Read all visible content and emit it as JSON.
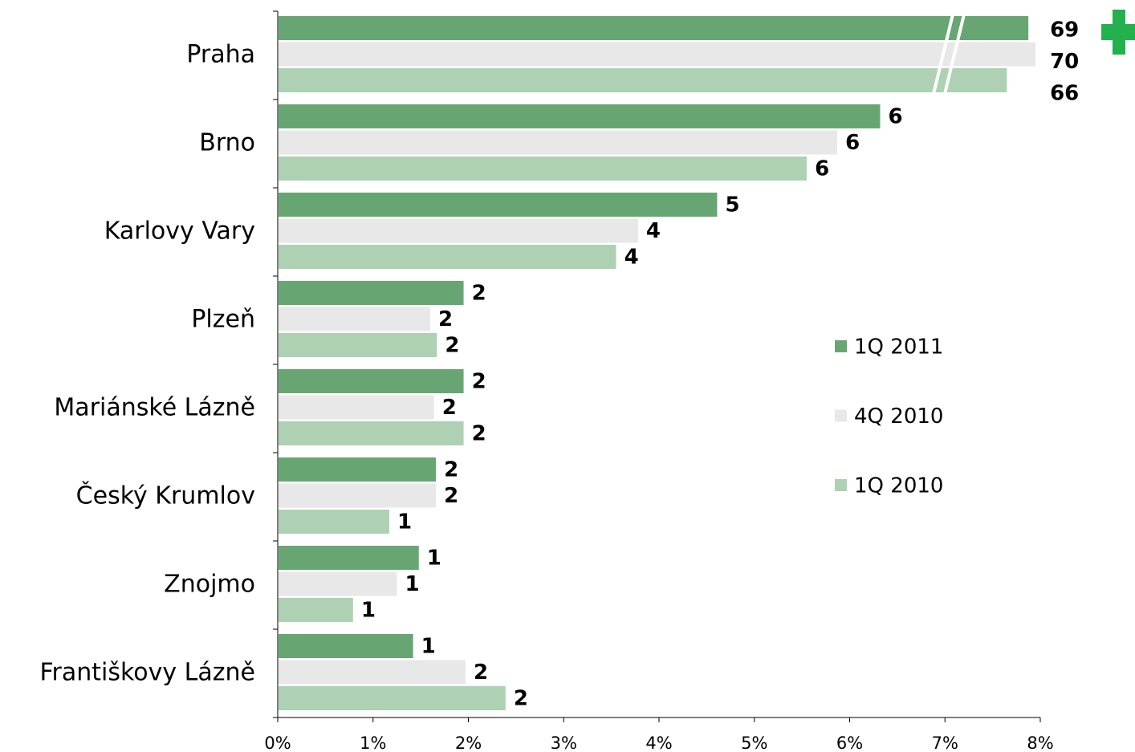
{
  "chart_data": {
    "type": "bar",
    "orientation": "horizontal",
    "categories": [
      "Praha",
      "Brno",
      "Karlovy Vary",
      "Plzeň",
      "Mariánské Lázně",
      "Český Krumlov",
      "Znojmo",
      "Františkovy Lázně"
    ],
    "series": [
      {
        "name": "1Q 2011",
        "color": "#67a673",
        "values": [
          69,
          6.32,
          4.61,
          1.95,
          1.95,
          1.66,
          1.48,
          1.42
        ],
        "value_labels": [
          "69",
          "6",
          "5",
          "2",
          "2",
          "2",
          "1",
          "1"
        ]
      },
      {
        "name": "4Q 2010",
        "color": "#e8e8e8",
        "values": [
          70,
          5.87,
          3.78,
          1.6,
          1.64,
          1.66,
          1.25,
          1.97
        ],
        "value_labels": [
          "70",
          "6",
          "4",
          "2",
          "2",
          "2",
          "1",
          "2"
        ]
      },
      {
        "name": "1Q 2010",
        "color": "#aed1b4",
        "values": [
          66,
          5.55,
          3.55,
          1.67,
          1.95,
          1.17,
          0.79,
          2.39
        ],
        "value_labels": [
          "66",
          "6",
          "4",
          "2",
          "2",
          "1",
          "1",
          "2"
        ]
      }
    ],
    "xlim": [
      0,
      8
    ],
    "xticks": [
      {
        "value": 0,
        "label": "0%"
      },
      {
        "value": 1,
        "label": "1%"
      },
      {
        "value": 2,
        "label": "2%"
      },
      {
        "value": 3,
        "label": "3%"
      },
      {
        "value": 4,
        "label": "4%"
      },
      {
        "value": 5,
        "label": "5%"
      },
      {
        "value": 6,
        "label": "6%"
      },
      {
        "value": 7,
        "label": "7%"
      },
      {
        "value": 8,
        "label": "8%"
      }
    ],
    "legend": "right",
    "axis_break": true
  }
}
